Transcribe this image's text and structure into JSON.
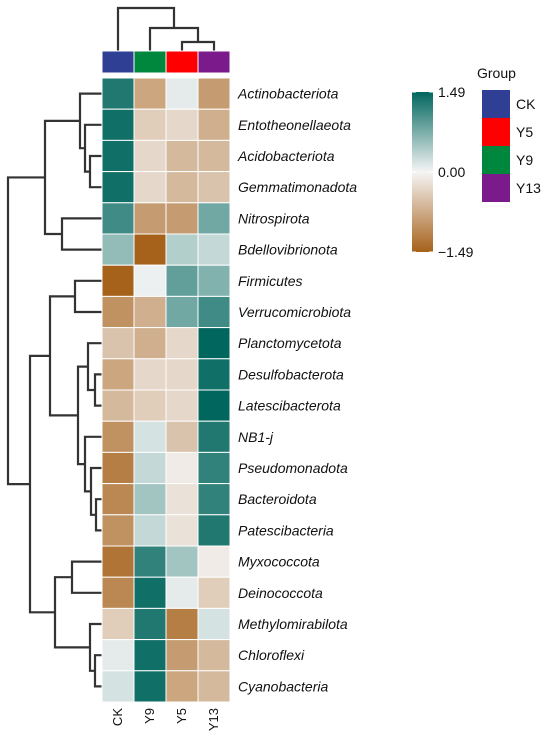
{
  "chart_data": {
    "type": "heatmap",
    "columns": [
      "CK",
      "Y9",
      "Y5",
      "Y13"
    ],
    "column_groups": [
      "CK",
      "Y9",
      "Y5",
      "Y13"
    ],
    "rows": [
      "Actinobacteriota",
      "Entotheonellaeota",
      "Acidobacteriota",
      "Gemmatimonadota",
      "Nitrospirota",
      "Bdellovibrionota",
      "Firmicutes",
      "Verrucomicrobiota",
      "Planctomycetota",
      "Desulfobacterota",
      "Latescibacterota",
      "NB1-j",
      "Pseudomonadota",
      "Bacteroidota",
      "Patescibacteria",
      "Myxococcota",
      "Deinococcota",
      "Methylomirabilota",
      "Chloroflexi",
      "Cyanobacteria"
    ],
    "values": [
      [
        1.3,
        -0.8,
        0.1,
        -0.9
      ],
      [
        1.4,
        -0.4,
        -0.3,
        -0.7
      ],
      [
        1.4,
        -0.3,
        -0.6,
        -0.6
      ],
      [
        1.4,
        -0.3,
        -0.6,
        -0.5
      ],
      [
        1.1,
        -0.9,
        -0.9,
        0.8
      ],
      [
        0.6,
        -1.49,
        0.4,
        0.3
      ],
      [
        -1.49,
        0.05,
        0.9,
        0.7
      ],
      [
        -1.0,
        -0.7,
        0.8,
        1.1
      ],
      [
        -0.5,
        -0.7,
        -0.3,
        1.49
      ],
      [
        -0.8,
        -0.3,
        -0.3,
        1.4
      ],
      [
        -0.6,
        -0.4,
        -0.3,
        1.49
      ],
      [
        -1.0,
        0.2,
        -0.5,
        1.3
      ],
      [
        -1.2,
        0.3,
        -0.1,
        1.2
      ],
      [
        -1.1,
        0.5,
        -0.2,
        1.2
      ],
      [
        -1.0,
        0.3,
        -0.2,
        1.3
      ],
      [
        -1.3,
        1.2,
        0.5,
        -0.1
      ],
      [
        -1.1,
        1.4,
        0.1,
        -0.4
      ],
      [
        -0.4,
        1.3,
        -1.2,
        0.2
      ],
      [
        0.1,
        1.4,
        -0.9,
        -0.6
      ],
      [
        0.2,
        1.4,
        -0.8,
        -0.6
      ]
    ],
    "scale": {
      "min": -1.49,
      "max": 1.49,
      "ticks": [
        "1.49",
        "0.00",
        "−1.49"
      ],
      "colors": {
        "low": "#a6611a",
        "mid": "#f5f5f5",
        "high": "#01665e"
      }
    },
    "legend": {
      "title": "Group",
      "items": [
        {
          "label": "CK",
          "color": "#2e3f94"
        },
        {
          "label": "Y5",
          "color": "#ff0000"
        },
        {
          "label": "Y9",
          "color": "#00873e"
        },
        {
          "label": "Y13",
          "color": "#7b1a8a"
        }
      ]
    }
  }
}
